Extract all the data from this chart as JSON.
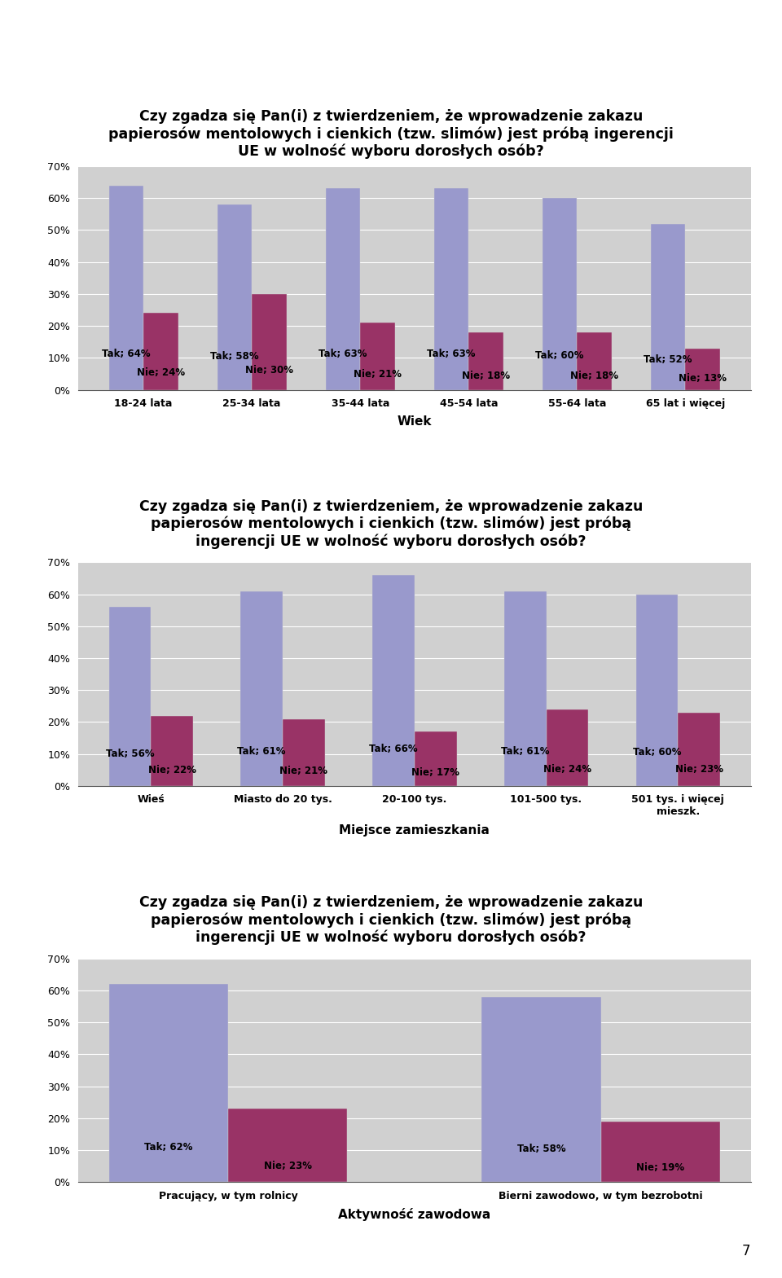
{
  "title1": "Czy zgadza się Pan(i) z twierdzeniem, że wprowadzenie zakazu\npapierosów mentolowych i cienkich (tzw. slimów) jest próbą ingerencji\nUE w wolność wyboru dorosłych osób?",
  "chart1_categories": [
    "18-24 lata",
    "25-34 lata",
    "35-44 lata",
    "45-54 lata",
    "55-64 lata",
    "65 lat i więcej"
  ],
  "chart1_tak": [
    64,
    58,
    63,
    63,
    60,
    52
  ],
  "chart1_nie": [
    24,
    30,
    21,
    18,
    18,
    13
  ],
  "chart1_xlabel": "Wiek",
  "title2": "Czy zgadza się Pan(i) z twierdzeniem, że wprowadzenie zakazu\npapierosów mentolowych i cienkich (tzw. slimów) jest próbą\ningerencji UE w wolność wyboru dorosłych osób?",
  "chart2_categories": [
    "Wieś",
    "Miasto do 20 tys.",
    "20-100 tys.",
    "101-500 tys.",
    "501 tys. i więcej\nmieszk."
  ],
  "chart2_tak": [
    56,
    61,
    66,
    61,
    60
  ],
  "chart2_nie": [
    22,
    21,
    17,
    24,
    23
  ],
  "chart2_xlabel": "Miejsce zamieszkania",
  "title3": "Czy zgadza się Pan(i) z twierdzeniem, że wprowadzenie zakazu\npapierosów mentolowych i cienkich (tzw. slimów) jest próbą\ningerencji UE w wolność wyboru dorosłych osób?",
  "chart3_categories": [
    "Pracujący, w tym rolnicy",
    "Bierni zawodowo, w tym bezrobotni"
  ],
  "chart3_tak": [
    62,
    58
  ],
  "chart3_nie": [
    23,
    19
  ],
  "chart3_xlabel": "Aktywność zawodowa",
  "color_tak": "#9999cc",
  "color_nie": "#993366",
  "bar_width": 0.32,
  "ylim": [
    0,
    70
  ],
  "yticks": [
    0,
    10,
    20,
    30,
    40,
    50,
    60,
    70
  ],
  "ytick_labels": [
    "0%",
    "10%",
    "20%",
    "30%",
    "40%",
    "50%",
    "60%",
    "70%"
  ],
  "background_color": "#d0d0d0",
  "page_background": "#ffffff",
  "title_fontsize": 12.5,
  "label_fontsize": 8.5,
  "axis_fontsize": 9,
  "xlabel_fontsize": 11
}
